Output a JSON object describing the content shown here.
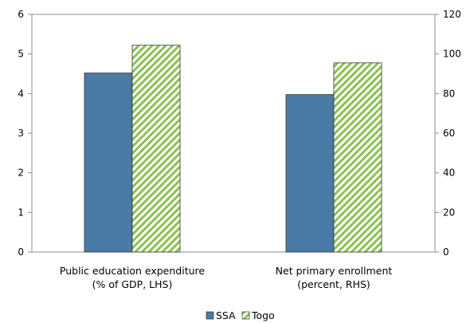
{
  "chart_data": {
    "type": "bar",
    "title": "",
    "categories": [
      [
        "Public education expenditure",
        "(% of GDP, LHS)"
      ],
      [
        "Net primary enrollment",
        "(percent, RHS)"
      ]
    ],
    "series": [
      {
        "name": "SSA",
        "color": "#4a7ba6",
        "pattern": "solid"
      },
      {
        "name": "Togo",
        "color": "#8cc152",
        "pattern": "diagonal-hatch"
      }
    ],
    "values": [
      {
        "category_index": 0,
        "axis": "left",
        "SSA": 4.52,
        "Togo": 5.22
      },
      {
        "category_index": 1,
        "axis": "right",
        "SSA": 79.5,
        "Togo": 95.5
      }
    ],
    "left_axis": {
      "min": 0,
      "max": 6,
      "ticks": [
        0,
        1,
        2,
        3,
        4,
        5,
        6
      ]
    },
    "right_axis": {
      "min": 0,
      "max": 120,
      "ticks": [
        0,
        20,
        40,
        60,
        80,
        100,
        120
      ]
    },
    "grid": false,
    "legend": {
      "position": "bottom",
      "labels": [
        "SSA",
        "Togo"
      ]
    }
  }
}
